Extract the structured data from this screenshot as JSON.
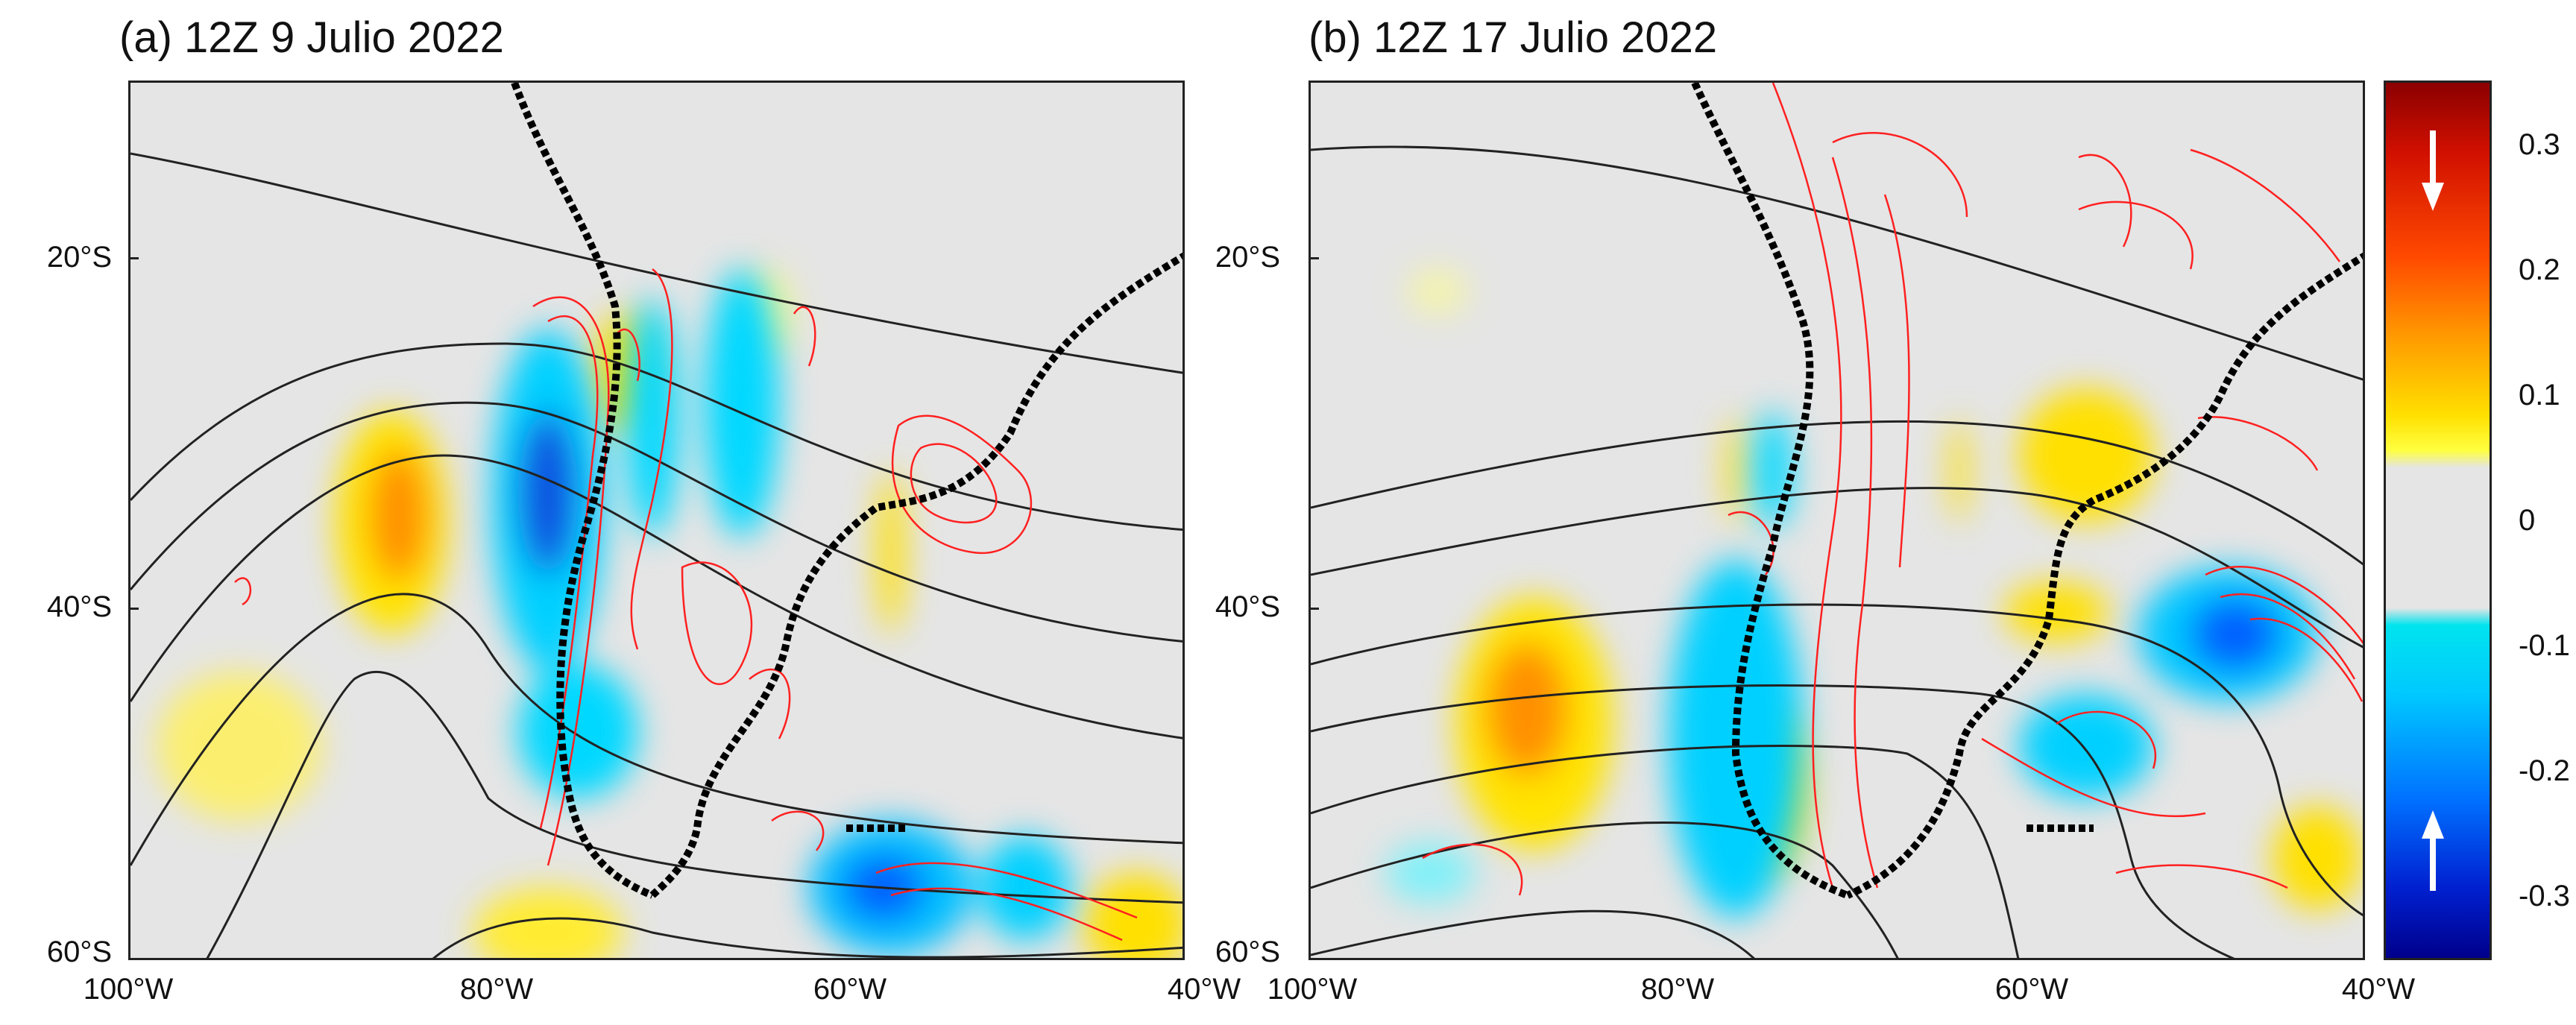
{
  "panels": [
    {
      "title": "(a) 12Z 9 Julio 2022"
    },
    {
      "title": "(b) 12Z 17 Julio 2022"
    }
  ],
  "axes": {
    "lat_labels": [
      "20°S",
      "40°S",
      "60°S"
    ],
    "lon_labels_a": [
      "100°W",
      "80°W",
      "60°W",
      "40°W"
    ],
    "lon_labels_b": [
      "100°W",
      "80°W",
      "60°W",
      "40°W"
    ]
  },
  "colorbar": {
    "labels": [
      "0.3",
      "0.2",
      "0.1",
      "0",
      "-0.1",
      "-0.2",
      "-0.3"
    ],
    "range": [
      -0.35,
      0.35
    ],
    "arrow_top": "down",
    "arrow_bottom": "up"
  },
  "colors": {
    "contour_black": "#222222",
    "contour_red": "#ff2020",
    "coast_dots": "#000000",
    "positive": "#ffd000",
    "negative": "#00c0ff"
  }
}
